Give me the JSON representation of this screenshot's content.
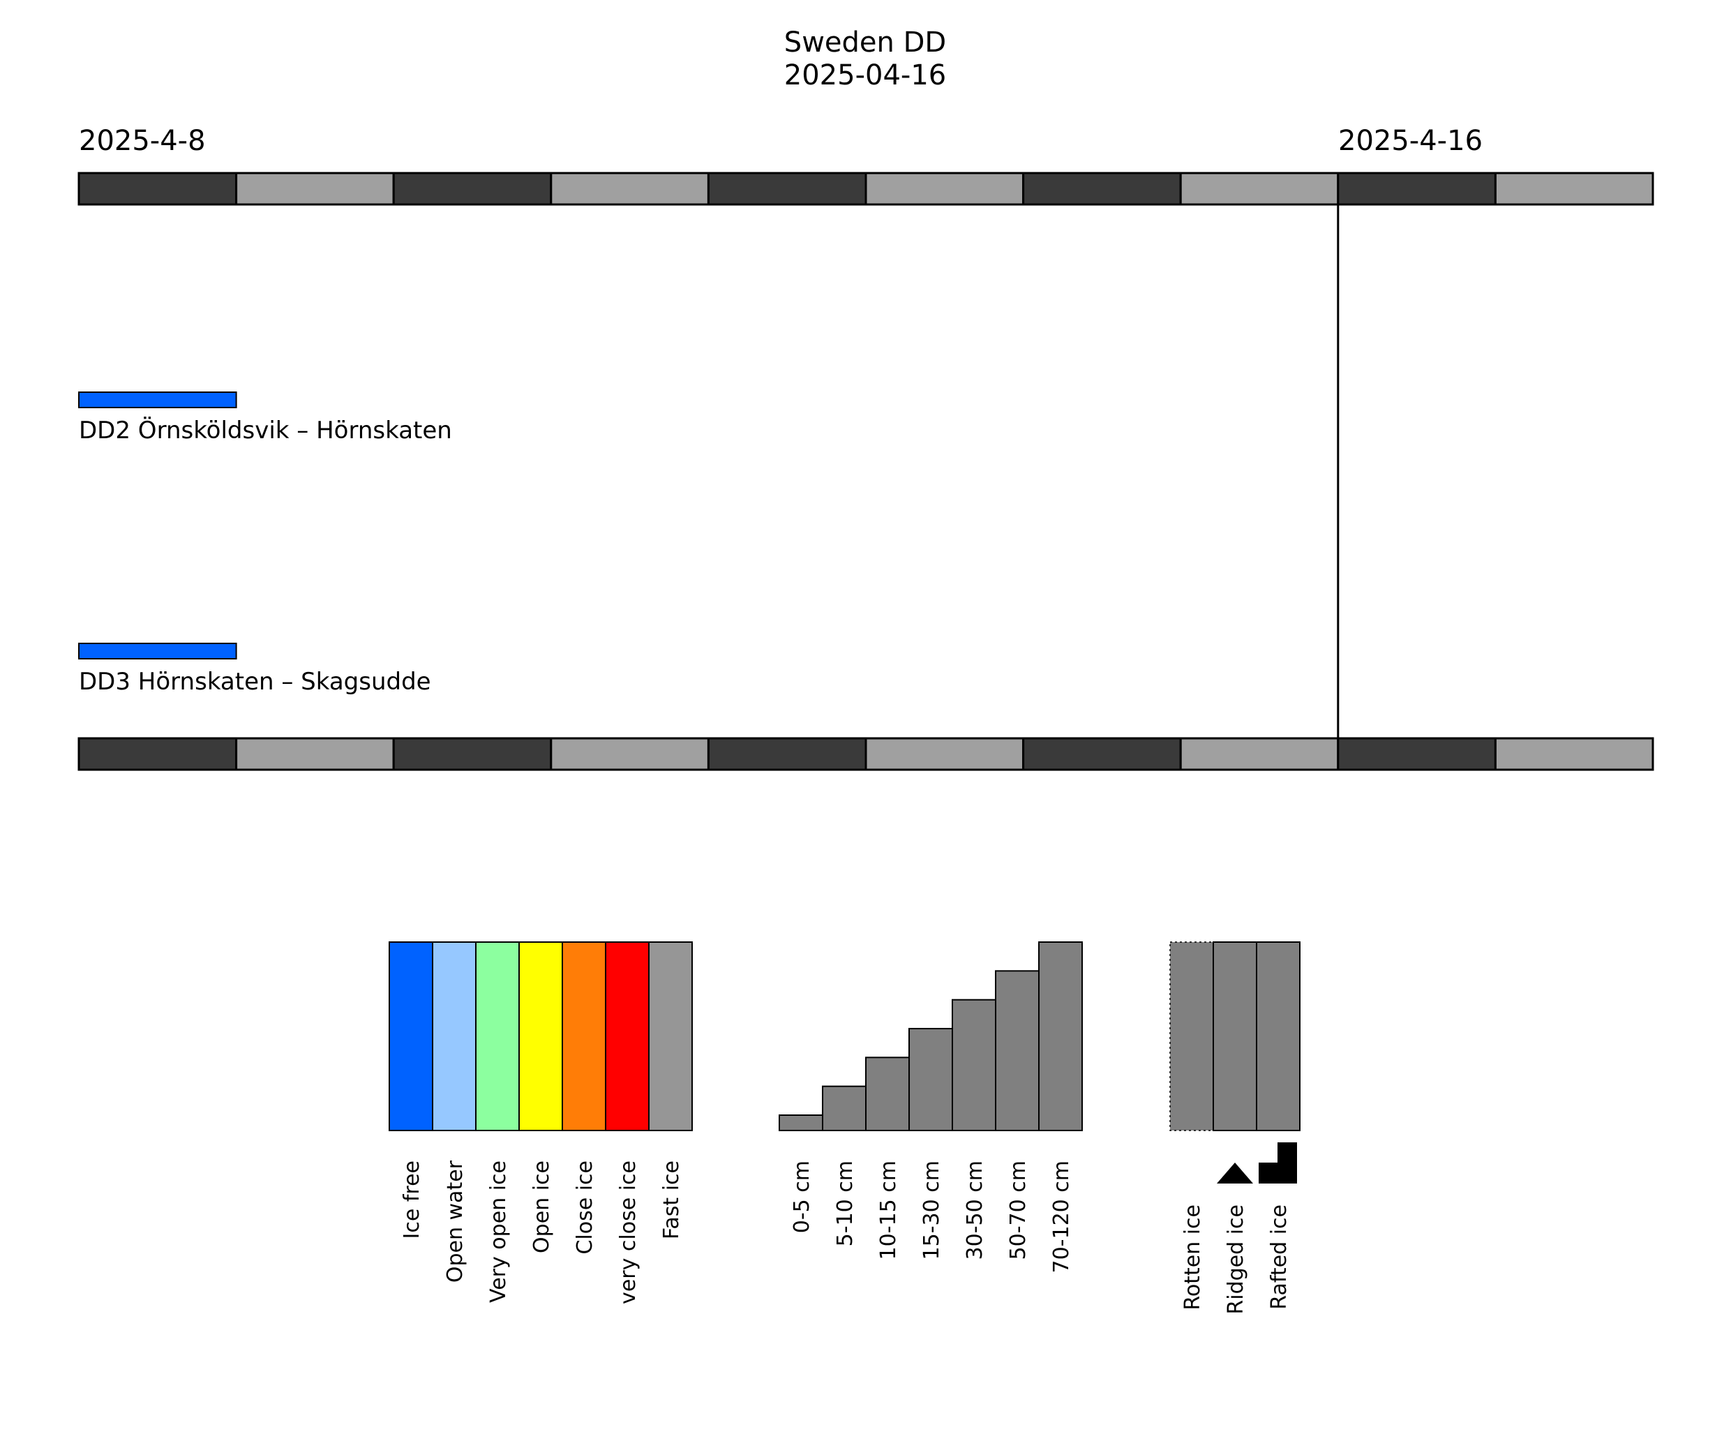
{
  "chart_data": {
    "type": "timeline",
    "title": "Sweden DD",
    "subtitle": "2025-04-16",
    "start_date": "2025-4-8",
    "end_date": "2025-4-16",
    "timeline_days": [
      "2025-04-08",
      "2025-04-09",
      "2025-04-10",
      "2025-04-11",
      "2025-04-12",
      "2025-04-13",
      "2025-04-14",
      "2025-04-15",
      "2025-04-16",
      "2025-04-17"
    ],
    "current_day_marker": "2025-04-16",
    "routes": [
      {
        "name": "DD2 Örnsköldsvik – Hörnskaten",
        "observations": [
          {
            "start": "2025-04-08",
            "end": "2025-04-08",
            "condition": "Ice free",
            "color": "#0062ff"
          }
        ]
      },
      {
        "name": "DD3 Hörnskaten – Skagsudde",
        "observations": [
          {
            "start": "2025-04-08",
            "end": "2025-04-08",
            "condition": "Ice free",
            "color": "#0062ff"
          }
        ]
      }
    ],
    "legend_concentration": [
      {
        "label": "Ice free",
        "color": "#0062ff"
      },
      {
        "label": "Open water",
        "color": "#96c8ff"
      },
      {
        "label": "Very open ice",
        "color": "#8cff9f"
      },
      {
        "label": "Open ice",
        "color": "#ffff00"
      },
      {
        "label": "Close ice",
        "color": "#ff7d07"
      },
      {
        "label": "very close ice",
        "color": "#ff0000"
      },
      {
        "label": "Fast ice",
        "color": "#969696"
      }
    ],
    "legend_thickness": [
      {
        "label": "0-5 cm",
        "level": 1
      },
      {
        "label": "5-10 cm",
        "level": 2
      },
      {
        "label": "10-15 cm",
        "level": 3
      },
      {
        "label": "15-30 cm",
        "level": 4
      },
      {
        "label": "30-50 cm",
        "level": 5
      },
      {
        "label": "50-70 cm",
        "level": 6
      },
      {
        "label": "70-120 cm",
        "level": 7
      }
    ],
    "legend_ice_types": [
      {
        "label": "Rotten ice",
        "symbol": "dotted-border"
      },
      {
        "label": "Ridged ice",
        "symbol": "triangle-icon"
      },
      {
        "label": "Rafted ice",
        "symbol": "step-icon"
      }
    ],
    "colors": {
      "day_dark": "#3a3a3a",
      "day_light": "#a0a0a0",
      "thickness_fill": "#808080",
      "ice_type_fill": "#808080"
    }
  }
}
